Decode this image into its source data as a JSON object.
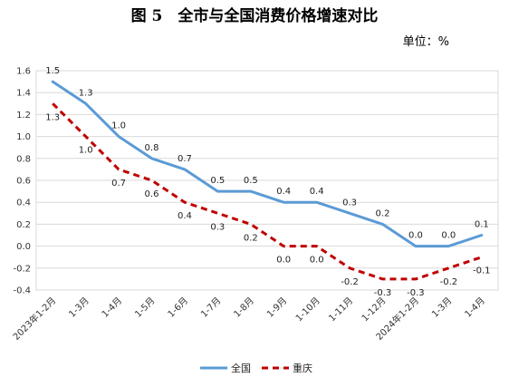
{
  "chart_data": {
    "type": "line",
    "title": "图 5　全市与全国消费价格增速对比",
    "unit_label": "单位：%",
    "categories": [
      "2023年1-2月",
      "1-3月",
      "1-4月",
      "1-5月",
      "1-6月",
      "1-7月",
      "1-8月",
      "1-9月",
      "1-10月",
      "1-11月",
      "1-12月",
      "2024年1-2月",
      "1-3月",
      "1-4月"
    ],
    "series": [
      {
        "name": "全国",
        "values": [
          1.5,
          1.3,
          1.0,
          0.8,
          0.7,
          0.5,
          0.5,
          0.4,
          0.4,
          0.3,
          0.2,
          0.0,
          0.0,
          0.1
        ],
        "labels": [
          "1.5",
          "1.3",
          "1.0",
          "0.8",
          "0.7",
          "0.5",
          "0.5",
          "0.4",
          "0.4",
          "0.3",
          "0.2",
          "0.0",
          "0.0",
          "0.1"
        ],
        "color": "#5b9bd5",
        "style": "solid"
      },
      {
        "name": "重庆",
        "values": [
          1.3,
          1.0,
          0.7,
          0.6,
          0.4,
          0.3,
          0.2,
          0.0,
          0.0,
          -0.2,
          -0.3,
          -0.3,
          -0.2,
          -0.1
        ],
        "labels": [
          "1.3",
          "1.0",
          "0.7",
          "0.6",
          "0.4",
          "0.3",
          "0.2",
          "0.0",
          "0.0",
          "-0.2",
          "-0.3",
          "-0.3",
          "-0.2",
          "-0.1"
        ],
        "color": "#c00000",
        "style": "dashed"
      }
    ],
    "ylim": [
      -0.4,
      1.6
    ],
    "yticks": [
      -0.4,
      -0.2,
      0.0,
      0.2,
      0.4,
      0.6,
      0.8,
      1.0,
      1.2,
      1.4,
      1.6
    ],
    "ytick_labels": [
      "-0.4",
      "-0.2",
      "0.0",
      "0.2",
      "0.4",
      "0.6",
      "0.8",
      "1.0",
      "1.2",
      "1.4",
      "1.6"
    ],
    "grid": true,
    "legend_position": "bottom",
    "xlabel": "",
    "ylabel": ""
  }
}
